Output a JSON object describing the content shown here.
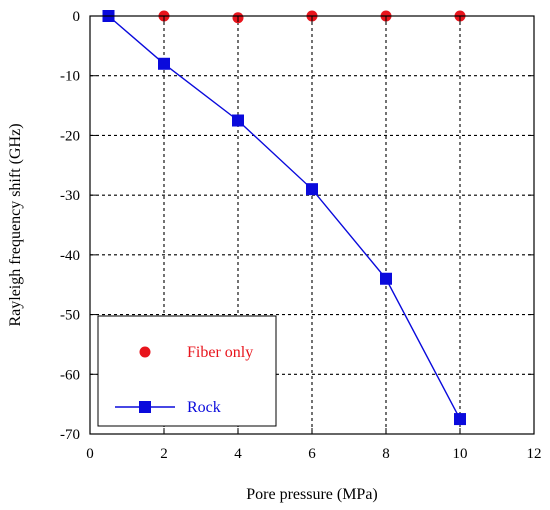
{
  "chart_data": {
    "type": "line",
    "title": "",
    "xlabel": "Pore pressure (MPa)",
    "ylabel": "Rayleigh frequency shift (GHz)",
    "xlim": [
      0,
      12
    ],
    "ylim": [
      -70,
      0
    ],
    "xticks": [
      0,
      2,
      4,
      6,
      8,
      10,
      12
    ],
    "yticks": [
      0,
      -10,
      -20,
      -30,
      -40,
      -50,
      -60,
      -70
    ],
    "grid": true,
    "legend_position": "bottom-left",
    "series": [
      {
        "name": "Fiber only",
        "color": "#e8141c",
        "marker": "circle",
        "line": false,
        "x": [
          0.5,
          2,
          4,
          6,
          8,
          10
        ],
        "y": [
          0,
          0,
          -0.3,
          0,
          0,
          0
        ]
      },
      {
        "name": "Rock",
        "color": "#0a0adc",
        "marker": "square",
        "line": true,
        "x": [
          0.5,
          2,
          4,
          6,
          8,
          10
        ],
        "y": [
          0,
          -8,
          -17.5,
          -29,
          -44,
          -67.5
        ]
      }
    ]
  }
}
